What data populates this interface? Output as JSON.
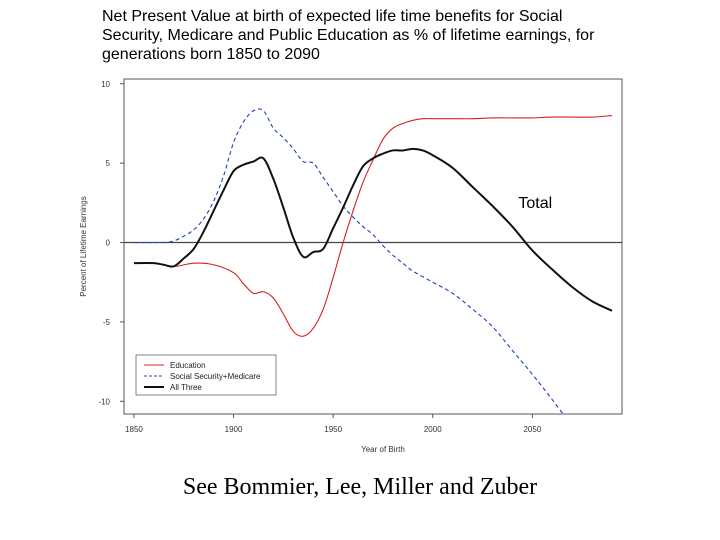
{
  "slide": {
    "title": "Net Present Value at birth of expected life time benefits for Social\nSecurity, Medicare and Public Education as % of lifetime earnings, for\ngenerations born 1850 to 2090",
    "caption": "See Bommier, Lee, Miller and Zuber"
  },
  "chart_data": {
    "type": "line",
    "xlabel": "Year of Birth",
    "ylabel": "Percent of Lifetime Earnings",
    "xlim": [
      1845,
      2095
    ],
    "ylim": [
      -10.8,
      10.3
    ],
    "xticks": [
      1850,
      1900,
      1950,
      2000,
      2050
    ],
    "yticks": [
      10,
      5,
      0,
      -5,
      -10
    ],
    "xtick_labels": [
      "1850",
      "1900",
      "1950",
      "2000",
      "2050"
    ],
    "ytick_labels": [
      "10",
      "5",
      "0",
      "-5",
      "-10"
    ],
    "zero_line": true,
    "grid": false,
    "legend": {
      "placement": "bottom-left",
      "entries": [
        "Education",
        "Social Security+Medicare",
        "All Three"
      ]
    },
    "annotations": [
      {
        "text": "Total",
        "x": 2043,
        "y": 2.5
      }
    ],
    "series": [
      {
        "name": "Education",
        "color": "#d62020",
        "dash": "solid",
        "x": [
          1850,
          1860,
          1870,
          1880,
          1890,
          1900,
          1905,
          1910,
          1915,
          1920,
          1925,
          1930,
          1935,
          1940,
          1945,
          1950,
          1955,
          1960,
          1965,
          1970,
          1975,
          1980,
          1985,
          1990,
          1995,
          2000,
          2010,
          2020,
          2030,
          2040,
          2050,
          2060,
          2070,
          2080,
          2090
        ],
        "y": [
          -1.3,
          -1.3,
          -1.5,
          -1.3,
          -1.4,
          -1.9,
          -2.6,
          -3.2,
          -3.1,
          -3.5,
          -4.5,
          -5.6,
          -5.9,
          -5.4,
          -4.2,
          -2.2,
          0.0,
          2.0,
          3.8,
          5.2,
          6.5,
          7.2,
          7.5,
          7.7,
          7.8,
          7.8,
          7.8,
          7.8,
          7.85,
          7.85,
          7.85,
          7.9,
          7.9,
          7.9,
          8.0
        ]
      },
      {
        "name": "Social Security+Medicare",
        "color": "#1f3fbf",
        "dash": "dashed",
        "x": [
          1850,
          1860,
          1865,
          1870,
          1875,
          1880,
          1885,
          1890,
          1895,
          1900,
          1905,
          1910,
          1915,
          1920,
          1925,
          1930,
          1935,
          1940,
          1945,
          1950,
          1955,
          1960,
          1965,
          1970,
          1975,
          1980,
          1985,
          1990,
          2000,
          2010,
          2020,
          2030,
          2040,
          2050,
          2060,
          2070,
          2075
        ],
        "y": [
          0.0,
          0.0,
          0.0,
          0.1,
          0.4,
          0.8,
          1.5,
          2.6,
          4.2,
          6.3,
          7.6,
          8.3,
          8.3,
          7.2,
          6.6,
          5.9,
          5.1,
          5.0,
          4.1,
          3.2,
          2.3,
          1.6,
          1.0,
          0.5,
          -0.2,
          -0.8,
          -1.3,
          -1.8,
          -2.5,
          -3.2,
          -4.2,
          -5.3,
          -6.8,
          -8.3,
          -9.9,
          -11.6,
          -12.6
        ]
      },
      {
        "name": "All Three",
        "color": "#111111",
        "dash": "solid",
        "x": [
          1850,
          1860,
          1865,
          1870,
          1875,
          1880,
          1885,
          1890,
          1895,
          1900,
          1905,
          1910,
          1915,
          1920,
          1925,
          1930,
          1935,
          1940,
          1945,
          1950,
          1955,
          1960,
          1965,
          1970,
          1975,
          1980,
          1985,
          1990,
          1995,
          2000,
          2010,
          2020,
          2030,
          2040,
          2050,
          2060,
          2070,
          2080,
          2090
        ],
        "y": [
          -1.3,
          -1.3,
          -1.4,
          -1.5,
          -1.0,
          -0.4,
          0.7,
          2.0,
          3.3,
          4.5,
          4.9,
          5.1,
          5.3,
          4.0,
          2.2,
          0.3,
          -0.9,
          -0.6,
          -0.4,
          0.9,
          2.2,
          3.6,
          4.8,
          5.3,
          5.6,
          5.8,
          5.8,
          5.9,
          5.8,
          5.5,
          4.7,
          3.5,
          2.3,
          1.0,
          -0.5,
          -1.7,
          -2.8,
          -3.7,
          -4.3
        ]
      }
    ]
  }
}
